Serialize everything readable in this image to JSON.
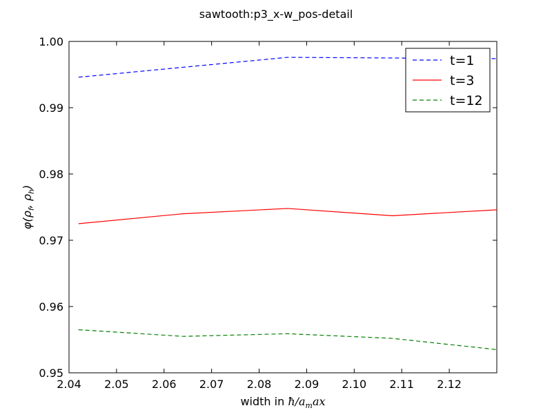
{
  "chart_data": {
    "type": "line",
    "title": "sawtooth:p3_x-w_pos-detail",
    "xlabel": "width in ",
    "xlabel_math": "ħ/a",
    "xlabel_math_sub": "m",
    "xlabel_math_tail": "ax",
    "ylabel_math": "φ(ρ",
    "ylabel_math_sub1": "f",
    "ylabel_math_mid": ", ρ",
    "ylabel_math_sub2": "h",
    "ylabel_math_close": ")",
    "xlim": [
      2.04,
      2.13
    ],
    "ylim": [
      0.95,
      1.0
    ],
    "xticks": [
      2.04,
      2.05,
      2.06,
      2.07,
      2.08,
      2.09,
      2.1,
      2.11,
      2.12
    ],
    "xtick_labels": [
      "2.04",
      "2.05",
      "2.06",
      "2.07",
      "2.08",
      "2.09",
      "2.10",
      "2.11",
      "2.12"
    ],
    "yticks": [
      0.95,
      0.96,
      0.97,
      0.98,
      0.99,
      1.0
    ],
    "ytick_labels": [
      "0.95",
      "0.96",
      "0.97",
      "0.98",
      "0.99",
      "1.00"
    ],
    "grid": false,
    "legend_position": "top-right",
    "x": [
      2.042,
      2.064,
      2.086,
      2.108,
      2.13
    ],
    "series": [
      {
        "name": "t=1",
        "color": "#0000ff",
        "dash": "dashed",
        "values": [
          0.9946,
          0.9961,
          0.9976,
          0.9975,
          0.9974
        ]
      },
      {
        "name": "t=3",
        "color": "#ff0000",
        "dash": "solid",
        "values": [
          0.9725,
          0.974,
          0.9748,
          0.9737,
          0.9746
        ]
      },
      {
        "name": "t=12",
        "color": "#008000",
        "dash": "dashed",
        "values": [
          0.9565,
          0.9555,
          0.9559,
          0.9552,
          0.9535
        ]
      }
    ]
  }
}
